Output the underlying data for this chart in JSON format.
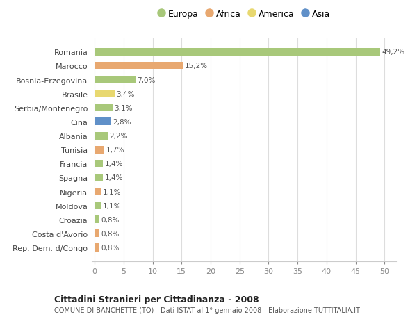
{
  "categories": [
    "Rep. Dem. d/Congo",
    "Costa d'Avorio",
    "Croazia",
    "Moldova",
    "Nigeria",
    "Spagna",
    "Francia",
    "Tunisia",
    "Albania",
    "Cina",
    "Serbia/Montenegro",
    "Brasile",
    "Bosnia-Erzegovina",
    "Marocco",
    "Romania"
  ],
  "values": [
    0.8,
    0.8,
    0.8,
    1.1,
    1.1,
    1.4,
    1.4,
    1.7,
    2.2,
    2.8,
    3.1,
    3.4,
    7.0,
    15.2,
    49.2
  ],
  "continents": [
    "Africa",
    "Africa",
    "Europa",
    "Europa",
    "Africa",
    "Europa",
    "Europa",
    "Africa",
    "Europa",
    "Asia",
    "Europa",
    "America",
    "Europa",
    "Africa",
    "Europa"
  ],
  "colors": {
    "Europa": "#a8c87a",
    "Africa": "#e8a870",
    "America": "#e8d870",
    "Asia": "#6090c8"
  },
  "legend_order": [
    "Europa",
    "Africa",
    "America",
    "Asia"
  ],
  "title": "Cittadini Stranieri per Cittadinanza - 2008",
  "subtitle": "COMUNE DI BANCHETTE (TO) - Dati ISTAT al 1° gennaio 2008 - Elaborazione TUTTITALIA.IT",
  "xlim": [
    -0.5,
    52
  ],
  "xticks": [
    0,
    5,
    10,
    15,
    20,
    25,
    30,
    35,
    40,
    45,
    50
  ],
  "bg_color": "#ffffff",
  "bar_height": 0.55,
  "value_labels": [
    "0,8%",
    "0,8%",
    "0,8%",
    "1,1%",
    "1,1%",
    "1,4%",
    "1,4%",
    "1,7%",
    "2,2%",
    "2,8%",
    "3,1%",
    "3,4%",
    "7,0%",
    "15,2%",
    "49,2%"
  ]
}
